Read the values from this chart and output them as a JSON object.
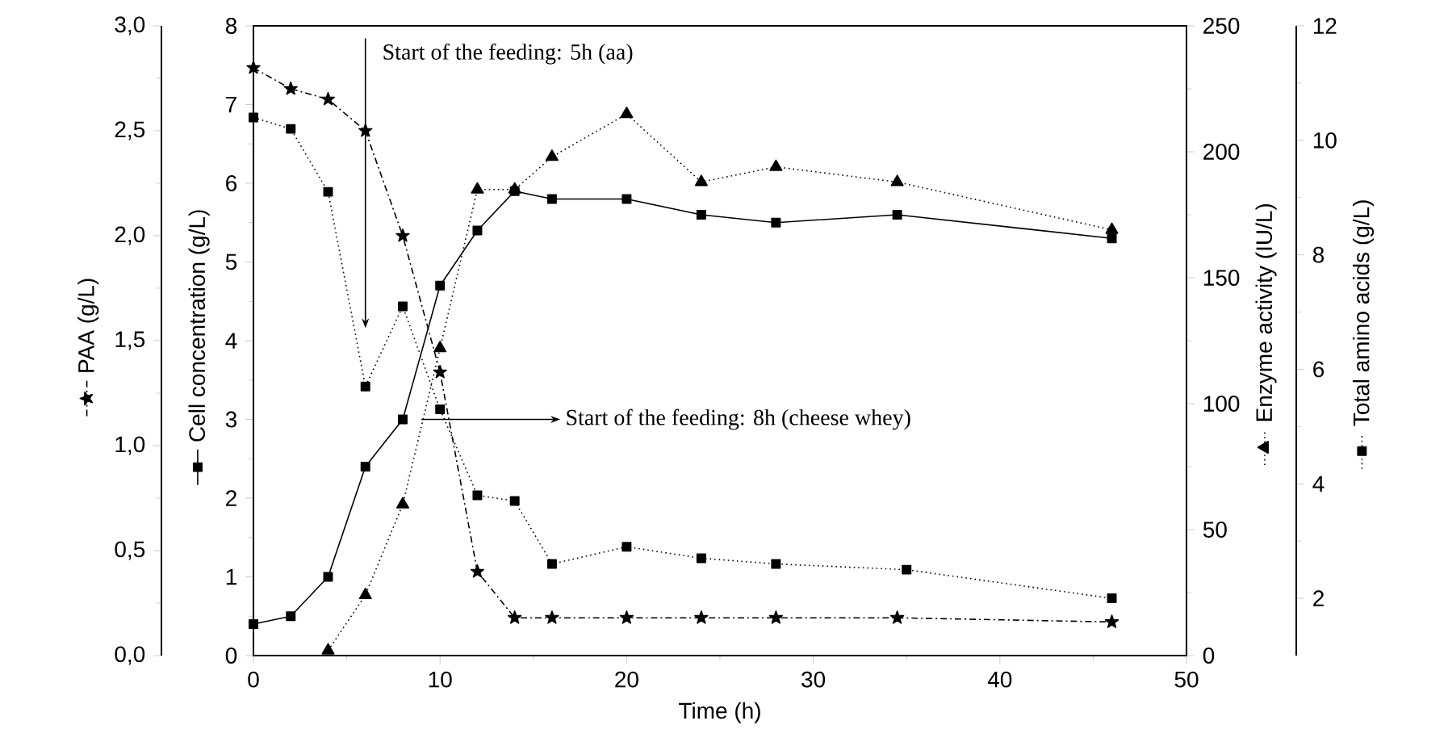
{
  "chart_data": [
    {
      "type": "line",
      "xlabel": "Time (h)",
      "ylabel": "Cell concentration (g/L)",
      "y2label": "Enzyme activity (IU/L)",
      "y3label": "Total amino acids (g/L)",
      "xlim": [
        0,
        50
      ],
      "xticks": [
        0,
        10,
        20,
        30,
        40,
        50
      ],
      "ylim": [
        0,
        8
      ],
      "yticks": [
        0,
        1,
        2,
        3,
        4,
        5,
        6,
        7,
        8
      ],
      "y2lim": [
        0,
        250
      ],
      "y2ticks": [
        0,
        50,
        100,
        150,
        200,
        250
      ],
      "y3lim": [
        1,
        12
      ],
      "y3ticks": [
        2,
        4,
        6,
        8,
        10,
        12
      ],
      "series": [
        {
          "axis": "y",
          "color": "#000000",
          "marker": "square",
          "line_style": "solid",
          "x": [
            0,
            2,
            4,
            6,
            8,
            10,
            12,
            14,
            16,
            20,
            24,
            28,
            34.5,
            46
          ],
          "values": [
            0.4,
            0.5,
            1.0,
            2.4,
            3.0,
            4.7,
            5.4,
            5.9,
            5.8,
            5.8,
            5.6,
            5.5,
            5.6,
            5.3
          ]
        },
        {
          "axis": "y2",
          "color": "#000000",
          "marker": "triangle",
          "line_style": "dotted",
          "x": [
            4,
            6,
            8,
            10,
            12,
            14,
            16,
            20,
            24,
            28,
            34.5,
            46
          ],
          "values": [
            2,
            24,
            60,
            122,
            185,
            185,
            198,
            215,
            188,
            194,
            188,
            169
          ]
        },
        {
          "axis": "y3",
          "color": "#000000",
          "marker": "square",
          "line_style": "dotted",
          "x": [
            0,
            2,
            4,
            6,
            8,
            10,
            12,
            14,
            16,
            20,
            24,
            28,
            35,
            46
          ],
          "values": [
            10.4,
            10.2,
            9.1,
            5.7,
            7.1,
            5.3,
            3.8,
            3.7,
            2.6,
            2.9,
            2.7,
            2.6,
            2.5,
            2.0
          ]
        }
      ],
      "annotations": [
        "Start of the feeding: 5h (aa)",
        {
          "text": "Start of the feeding: 8h (cheese whey)",
          "x": 9,
          "y": 3.0
        }
      ]
    },
    {
      "type": "line",
      "ylabel": "PAA (g/L)",
      "xlim": [
        0,
        50
      ],
      "ylim": [
        0,
        3
      ],
      "yticks": [
        {
          "value": 0,
          "label": "0,0"
        },
        {
          "value": 0.5,
          "label": "0,5"
        },
        {
          "value": 1,
          "label": "1,0"
        },
        {
          "value": 1.5,
          "label": "1,5"
        },
        {
          "value": 2,
          "label": "2,0"
        },
        {
          "value": 2.5,
          "label": "2,5"
        },
        {
          "value": 3,
          "label": "3,0"
        }
      ],
      "tick_labels": "y",
      "series": [
        {
          "color": "#000000",
          "marker": "star",
          "line_style": "dashed",
          "x": [
            0,
            2,
            4,
            6,
            8,
            10,
            12,
            14,
            16,
            20,
            24,
            28,
            34.5,
            46
          ],
          "values": [
            2.8,
            2.7,
            2.65,
            2.5,
            2.0,
            1.35,
            0.4,
            0.18,
            0.18,
            0.18,
            0.18,
            0.18,
            0.18,
            0.16
          ]
        }
      ]
    }
  ]
}
